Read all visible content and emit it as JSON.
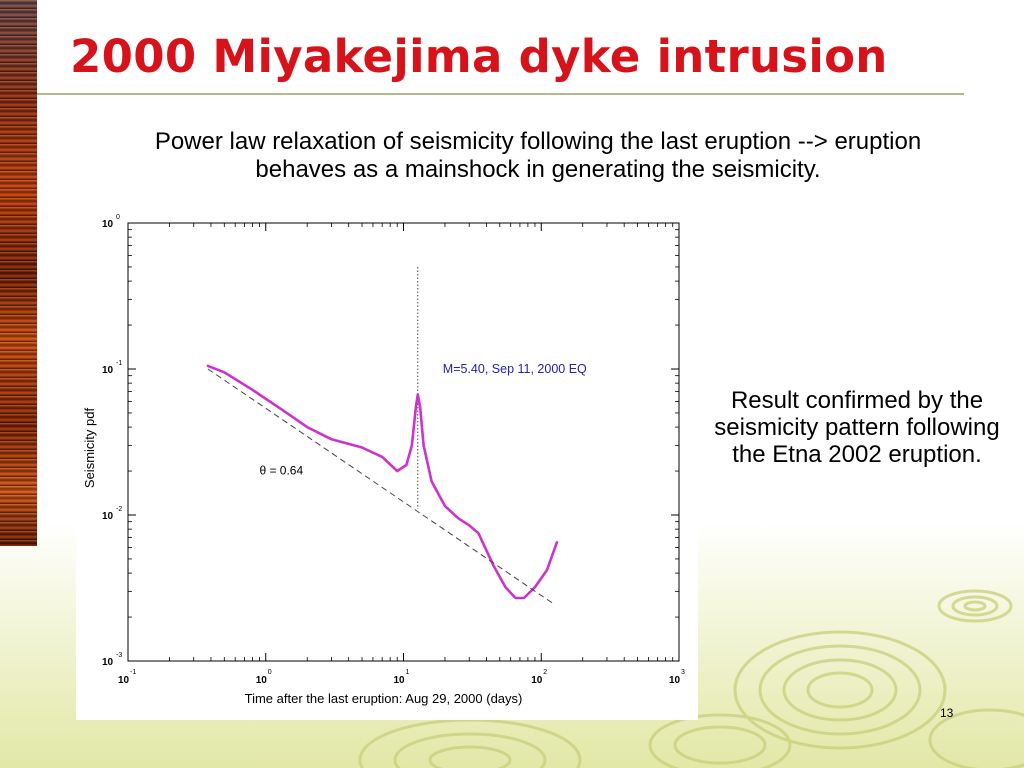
{
  "slide": {
    "title": "2000 Miyakejima dyke intrusion",
    "subtitle_line1": "Power law relaxation of seismicity following the last eruption --> eruption",
    "subtitle_line2": "behaves as a mainshock in generating the seismicity.",
    "side_note": "Result confirmed by the seismicity pattern following the Etna 2002 eruption.",
    "page_number": "13",
    "colors": {
      "title": "#d6121a",
      "curve": "#cc33cc",
      "annotation": "#2222aa",
      "background_bottom": "#e2e8a6"
    }
  },
  "chart_data": {
    "type": "line",
    "xscale": "log",
    "yscale": "log",
    "xlim": [
      0.1,
      1000
    ],
    "ylim": [
      0.001,
      1
    ],
    "xlabel": "Time after the last eruption: Aug 29, 2000 (days)",
    "ylabel": "Seismicity pdf",
    "x_ticks": [
      {
        "base": "10",
        "exp": "-1",
        "value": 0.1
      },
      {
        "base": "10",
        "exp": "0",
        "value": 1
      },
      {
        "base": "10",
        "exp": "1",
        "value": 10
      },
      {
        "base": "10",
        "exp": "2",
        "value": 100
      },
      {
        "base": "10",
        "exp": "3",
        "value": 1000
      }
    ],
    "y_ticks": [
      {
        "base": "10",
        "exp": "0",
        "value": 1
      },
      {
        "base": "10",
        "exp": "-1",
        "value": 0.1
      },
      {
        "base": "10",
        "exp": "-2",
        "value": 0.01
      },
      {
        "base": "10",
        "exp": "-3",
        "value": 0.001
      }
    ],
    "series": [
      {
        "style": "solid",
        "x": [
          0.38,
          0.5,
          0.8,
          1.3,
          2.0,
          3.0,
          5.0,
          7.0,
          9.0,
          10.5,
          11.5,
          12.3,
          12.7,
          13.2,
          14.0,
          16.0,
          20.0,
          25.0,
          30.0,
          35.0,
          45.0,
          55.0,
          65.0,
          75.0,
          90.0,
          110.0,
          130.0
        ],
        "y": [
          0.105,
          0.095,
          0.072,
          0.053,
          0.04,
          0.033,
          0.029,
          0.025,
          0.02,
          0.022,
          0.03,
          0.055,
          0.067,
          0.055,
          0.03,
          0.017,
          0.0115,
          0.0095,
          0.0085,
          0.0075,
          0.0045,
          0.0032,
          0.0027,
          0.0027,
          0.0032,
          0.0042,
          0.0065
        ]
      },
      {
        "style": "dashed",
        "x": [
          0.38,
          120.0
        ],
        "y": [
          0.1,
          0.0025
        ]
      }
    ],
    "annotations": [
      {
        "text": "M=5.40, Sep 11, 2000 EQ",
        "x": 12.7,
        "y": 0.1
      },
      {
        "text": "θ = 0.64",
        "x": 0.9,
        "y": 0.019
      }
    ],
    "vline": {
      "x": 12.7,
      "y_range": [
        0.011,
        0.5
      ],
      "style": "dotted"
    },
    "grid": false
  }
}
